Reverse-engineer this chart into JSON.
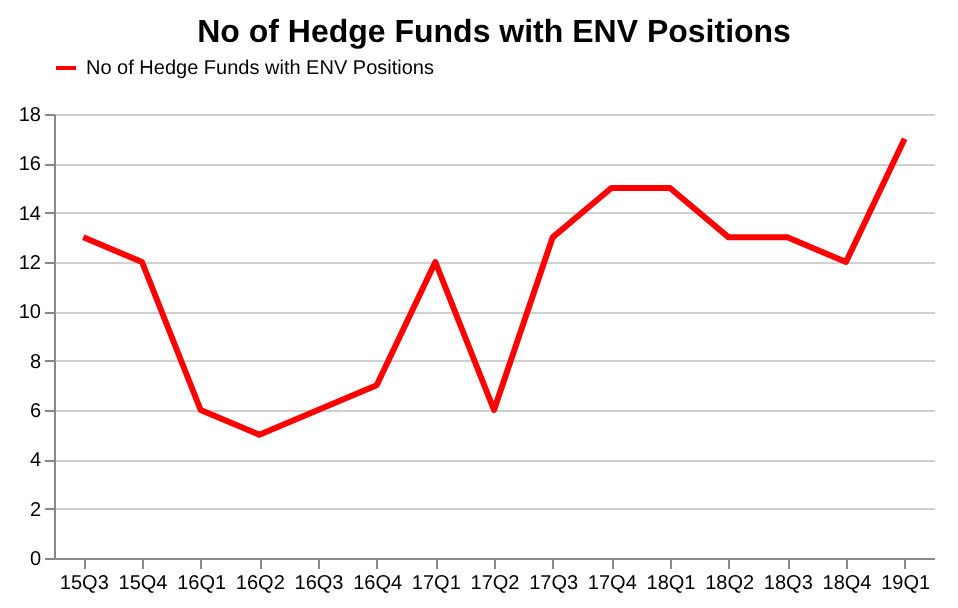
{
  "chart_data": {
    "type": "line",
    "title": "No of Hedge Funds with ENV Positions",
    "categories": [
      "15Q3",
      "15Q4",
      "16Q1",
      "16Q2",
      "16Q3",
      "16Q4",
      "17Q1",
      "17Q2",
      "17Q3",
      "17Q4",
      "18Q1",
      "18Q2",
      "18Q3",
      "18Q4",
      "19Q1"
    ],
    "series": [
      {
        "name": "No of Hedge Funds with ENV Positions",
        "color": "#ff0000",
        "values": [
          13,
          12,
          6,
          5,
          6,
          7,
          12,
          6,
          13,
          15,
          15,
          13,
          13,
          12,
          17
        ]
      }
    ],
    "ylim": [
      0,
      18
    ],
    "yticks": [
      0,
      2,
      4,
      6,
      8,
      10,
      12,
      14,
      16,
      18
    ],
    "grid": "y",
    "legend": "top",
    "marker": "none",
    "line_style": "solid"
  }
}
